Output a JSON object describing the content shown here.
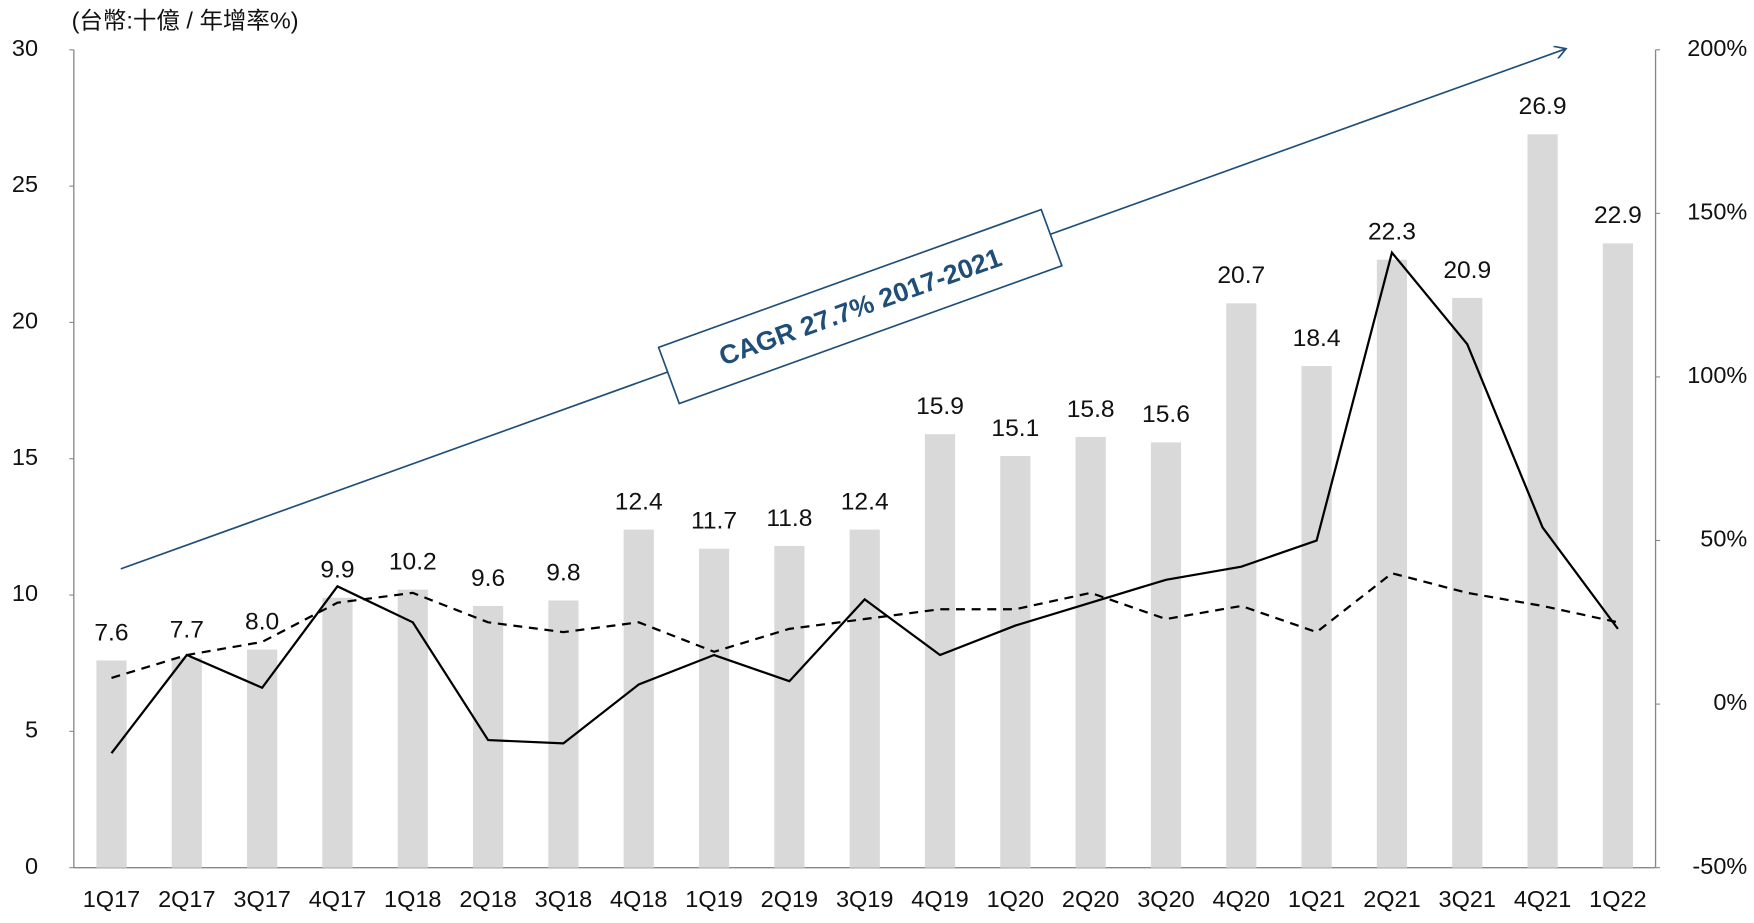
{
  "chart_data": {
    "type": "bar",
    "unit_label": "(台幣:十億 / 年增率%)",
    "annotation": "CAGR 27.7% 2017-2021",
    "categories": [
      "1Q17",
      "2Q17",
      "3Q17",
      "4Q17",
      "1Q18",
      "2Q18",
      "3Q18",
      "4Q18",
      "1Q19",
      "2Q19",
      "3Q19",
      "4Q19",
      "1Q20",
      "2Q20",
      "3Q20",
      "4Q20",
      "1Q21",
      "2Q21",
      "3Q21",
      "4Q21",
      "1Q22"
    ],
    "values": [
      7.6,
      7.7,
      8.0,
      9.9,
      10.2,
      9.6,
      9.8,
      12.4,
      11.7,
      11.8,
      12.4,
      15.9,
      15.1,
      15.8,
      15.6,
      20.7,
      18.4,
      22.3,
      20.9,
      26.9,
      22.9
    ],
    "value_labels": [
      "7.6",
      "7.7",
      "8.0",
      "9.9",
      "10.2",
      "9.6",
      "9.8",
      "12.4",
      "11.7",
      "11.8",
      "12.4",
      "15.9",
      "15.1",
      "15.8",
      "15.6",
      "20.7",
      "18.4",
      "22.3",
      "20.9",
      "26.9",
      "22.9"
    ],
    "color": "#d9d9d9",
    "lines": [
      {
        "type": "line",
        "axis": "y2",
        "color": "#000000",
        "dash": false,
        "values": [
          -15,
          15,
          5,
          36,
          25,
          -11,
          -12,
          6,
          15,
          7,
          32,
          15,
          24,
          31,
          38,
          42,
          50,
          138,
          110,
          54,
          23
        ]
      },
      {
        "type": "line",
        "axis": "y2",
        "color": "#000000",
        "dash": true,
        "values": [
          8,
          15,
          19,
          31,
          34,
          25,
          22,
          25,
          16,
          23,
          26,
          29,
          29,
          34,
          26,
          30,
          22,
          40,
          34,
          30,
          25
        ]
      }
    ],
    "ylim": [
      0,
      30
    ],
    "yticks": [
      0,
      5,
      10,
      15,
      20,
      25,
      30
    ],
    "y2lim": [
      -50,
      200
    ],
    "y2ticks": [
      {
        "value": -50,
        "label": "-50%"
      },
      {
        "value": 0,
        "label": "0%"
      },
      {
        "value": 50,
        "label": "50%"
      },
      {
        "value": 100,
        "label": "100%"
      },
      {
        "value": 150,
        "label": "150%"
      },
      {
        "value": 200,
        "label": "200%"
      }
    ],
    "arrow_color": "#1f4e79",
    "grid": false
  }
}
